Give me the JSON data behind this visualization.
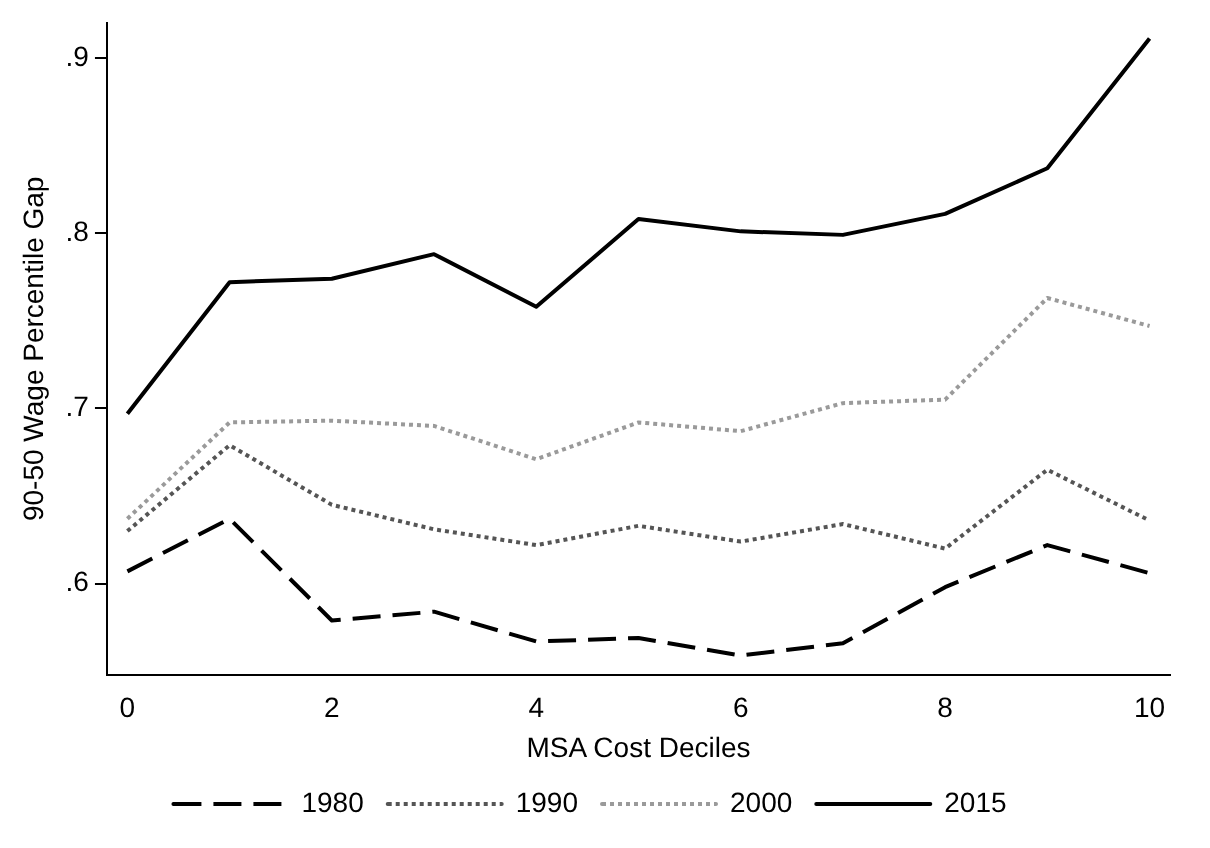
{
  "chart_data": {
    "type": "line",
    "xlabel": "MSA Cost Deciles",
    "ylabel": "90-50 Wage Percentile Gap",
    "x": [
      0,
      1,
      2,
      3,
      4,
      5,
      6,
      7,
      8,
      9,
      10
    ],
    "series": [
      {
        "name": "1980",
        "color": "#000000",
        "line_style": "dashed",
        "values": [
          0.607,
          0.637,
          0.579,
          0.584,
          0.567,
          0.569,
          0.559,
          0.566,
          0.598,
          0.622,
          0.606
        ]
      },
      {
        "name": "1990",
        "color": "#555555",
        "line_style": "dotted",
        "values": [
          0.63,
          0.679,
          0.645,
          0.631,
          0.622,
          0.633,
          0.624,
          0.634,
          0.62,
          0.665,
          0.636
        ]
      },
      {
        "name": "2000",
        "color": "#9a9a9a",
        "line_style": "dotted",
        "values": [
          0.637,
          0.692,
          0.693,
          0.69,
          0.671,
          0.692,
          0.687,
          0.703,
          0.705,
          0.763,
          0.747
        ]
      },
      {
        "name": "2015",
        "color": "#000000",
        "line_style": "solid",
        "values": [
          0.697,
          0.772,
          0.774,
          0.788,
          0.758,
          0.808,
          0.801,
          0.799,
          0.811,
          0.837,
          0.911
        ]
      }
    ],
    "xlim": [
      -0.2,
      10.2
    ],
    "xticks": [
      0,
      2,
      4,
      6,
      8,
      10
    ],
    "ylim": [
      0.548,
      0.92
    ],
    "yticks": [
      {
        "value": 0.6,
        "label": ".6"
      },
      {
        "value": 0.7,
        "label": ".7"
      },
      {
        "value": 0.8,
        "label": ".8"
      },
      {
        "value": 0.9,
        "label": ".9"
      }
    ],
    "grid": false,
    "legend": "bottom",
    "marker": "none"
  }
}
